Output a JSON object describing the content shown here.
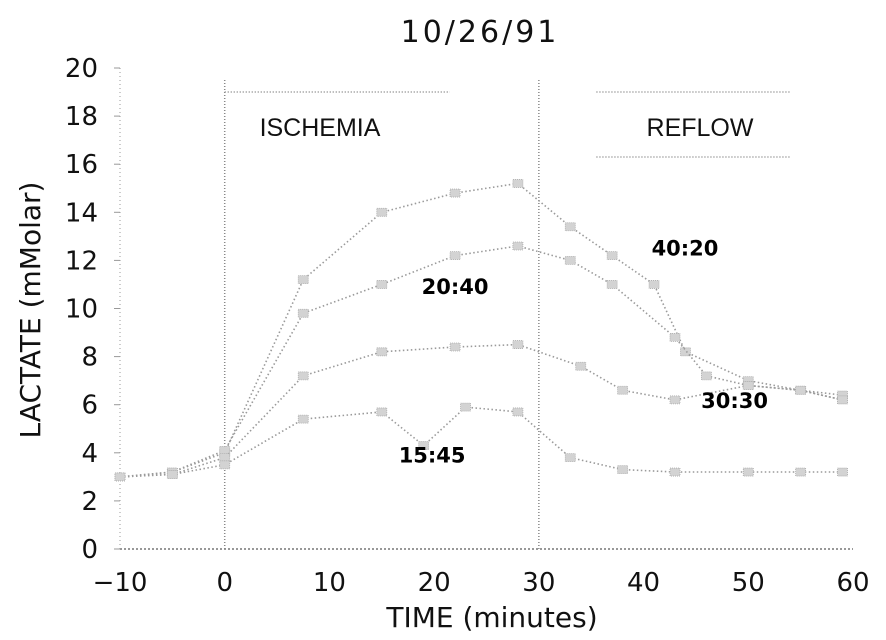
{
  "chart_data": {
    "type": "line",
    "title": "10/26/91",
    "xlabel": "TIME (minutes)",
    "ylabel": "LACTATE (mMolar)",
    "xlim": [
      -10,
      60
    ],
    "ylim": [
      0,
      20
    ],
    "xticks": [
      "-10",
      "0",
      "10",
      "20",
      "30",
      "40",
      "50",
      "60"
    ],
    "yticks": [
      "0",
      "2",
      "4",
      "6",
      "8",
      "10",
      "12",
      "14",
      "16",
      "18",
      "20"
    ],
    "grid": false,
    "annotations": {
      "ischemia": "ISCHEMIA",
      "reflow": "REFLOW"
    },
    "series": [
      {
        "name": "40:20",
        "points": [
          [
            -10,
            3.0
          ],
          [
            -5,
            3.2
          ],
          [
            0,
            4.0
          ],
          [
            7.5,
            11.2
          ],
          [
            15,
            14.0
          ],
          [
            22,
            14.8
          ],
          [
            28,
            15.2
          ],
          [
            33,
            13.4
          ],
          [
            37,
            12.2
          ],
          [
            41,
            11.0
          ],
          [
            44,
            8.2
          ],
          [
            50,
            7.0
          ],
          [
            55,
            6.6
          ],
          [
            59,
            6.4
          ]
        ]
      },
      {
        "name": "20:40",
        "points": [
          [
            -10,
            3.0
          ],
          [
            -5,
            3.2
          ],
          [
            0,
            4.1
          ],
          [
            7.5,
            9.8
          ],
          [
            15,
            11.0
          ],
          [
            22,
            12.2
          ],
          [
            28,
            12.6
          ],
          [
            33,
            12.0
          ],
          [
            37,
            11.0
          ],
          [
            43,
            8.8
          ],
          [
            46,
            7.2
          ],
          [
            50,
            6.8
          ],
          [
            55,
            6.6
          ],
          [
            59,
            6.2
          ]
        ]
      },
      {
        "name": "30:30",
        "points": [
          [
            -10,
            3.0
          ],
          [
            -5,
            3.1
          ],
          [
            0,
            3.8
          ],
          [
            7.5,
            7.2
          ],
          [
            15,
            8.2
          ],
          [
            22,
            8.4
          ],
          [
            28,
            8.5
          ],
          [
            34,
            7.6
          ],
          [
            38,
            6.6
          ],
          [
            43,
            6.2
          ],
          [
            50,
            6.8
          ],
          [
            55,
            6.6
          ],
          [
            59,
            6.2
          ]
        ]
      },
      {
        "name": "15:45",
        "points": [
          [
            -10,
            3.0
          ],
          [
            -5,
            3.1
          ],
          [
            0,
            3.5
          ],
          [
            7.5,
            5.4
          ],
          [
            15,
            5.7
          ],
          [
            19,
            4.3
          ],
          [
            23,
            5.9
          ],
          [
            28,
            5.7
          ],
          [
            33,
            3.8
          ],
          [
            38,
            3.3
          ],
          [
            43,
            3.2
          ],
          [
            50,
            3.2
          ],
          [
            55,
            3.2
          ],
          [
            59,
            3.2
          ]
        ]
      }
    ]
  }
}
